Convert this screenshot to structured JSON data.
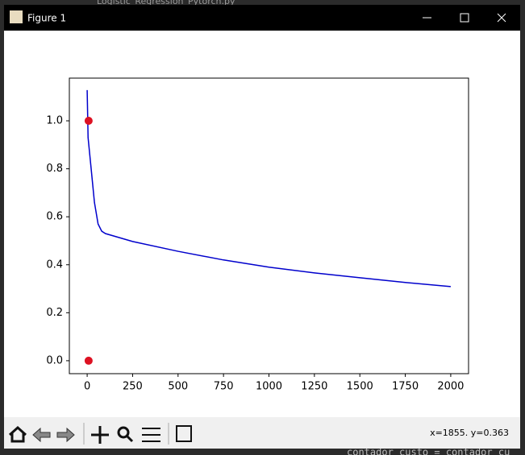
{
  "window": {
    "title": "Figure 1",
    "background_tab": "Logistic_Regression_Pytorch.py",
    "background_code": "contador_custo = contador_cu"
  },
  "status": "x=1855. y=0.363",
  "chart_data": {
    "type": "line",
    "line": {
      "color": "#0000cc",
      "x": [
        0,
        5,
        20,
        40,
        60,
        80,
        100,
        250,
        500,
        750,
        1000,
        1250,
        1500,
        1750,
        2000
      ],
      "values": [
        1.128,
        0.93,
        0.815,
        0.66,
        0.57,
        0.54,
        0.53,
        0.497,
        0.456,
        0.42,
        0.39,
        0.366,
        0.346,
        0.326,
        0.309
      ]
    },
    "points": {
      "color": "#dd1122",
      "x": [
        8,
        8
      ],
      "values": [
        1.0,
        0.0
      ]
    },
    "xlim": [
      -98,
      2098
    ],
    "ylim": [
      -0.054,
      1.178
    ],
    "xticks": [
      0,
      250,
      500,
      750,
      1000,
      1250,
      1500,
      1750,
      2000
    ],
    "yticks": [
      {
        "value": 0,
        "label": "0.0"
      },
      0.2,
      0.4,
      0.6,
      0.8,
      {
        "value": 1,
        "label": "1.0"
      }
    ]
  }
}
